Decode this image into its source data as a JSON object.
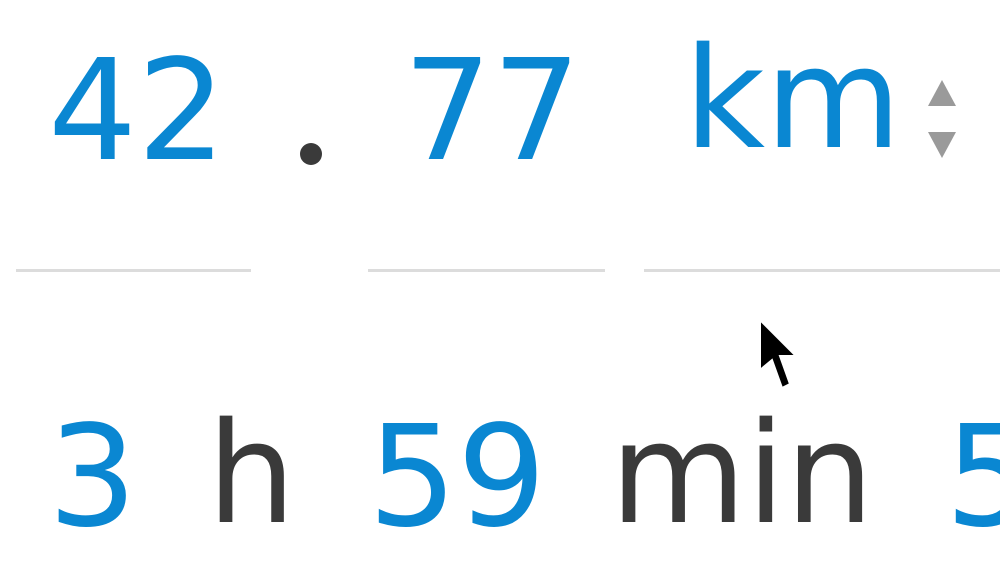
{
  "distance": {
    "integer": "42",
    "separator_dot": "",
    "decimal": "77",
    "unit": "km"
  },
  "duration": {
    "hours": "3",
    "hours_unit": "h",
    "minutes": "59",
    "minutes_unit": "min",
    "seconds_partial": "5"
  },
  "icons": {
    "spinner_up": "spinner-up-icon",
    "spinner_down": "spinner-down-icon",
    "cursor": "mouse-cursor-icon"
  },
  "colors": {
    "value_blue": "#0a87d2",
    "text_dark": "#3a3a3a",
    "underline": "#dcdcdc",
    "spinner": "#9a9a9a"
  }
}
